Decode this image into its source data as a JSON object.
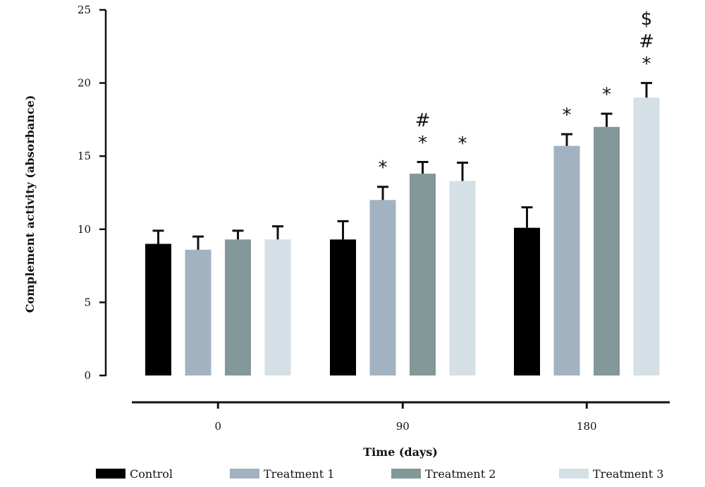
{
  "chart_data": {
    "type": "bar",
    "title": "",
    "ylabel": "Complement activity (absorbance)",
    "xlabel": "Time (days)",
    "ylim": [
      0,
      25
    ],
    "yticks": [
      0,
      5,
      10,
      15,
      20,
      25
    ],
    "categories": [
      "0",
      "90",
      "180"
    ],
    "legend_position": "bottom",
    "grid": false,
    "series": [
      {
        "name": "Control",
        "color": "#000000",
        "values": [
          9.0,
          9.3,
          10.1
        ],
        "errors": [
          0.9,
          1.25,
          1.4
        ],
        "annotations": [
          [],
          [],
          []
        ]
      },
      {
        "name": "Treatment 1",
        "color": "#a2b2c0",
        "values": [
          8.6,
          12.0,
          15.7
        ],
        "errors": [
          0.9,
          0.9,
          0.8
        ],
        "annotations": [
          [],
          [
            "*"
          ],
          [
            "*"
          ]
        ]
      },
      {
        "name": "Treatment 2",
        "color": "#839898",
        "values": [
          9.3,
          13.8,
          17.0
        ],
        "errors": [
          0.6,
          0.8,
          0.9
        ],
        "annotations": [
          [],
          [
            "*",
            "#"
          ],
          [
            "*"
          ]
        ]
      },
      {
        "name": "Treatment 3",
        "color": "#d5dfe6",
        "values": [
          9.3,
          13.3,
          19.0
        ],
        "errors": [
          0.9,
          1.25,
          1.0
        ],
        "annotations": [
          [],
          [
            "*"
          ],
          [
            "*",
            "#",
            "$"
          ]
        ]
      }
    ]
  }
}
